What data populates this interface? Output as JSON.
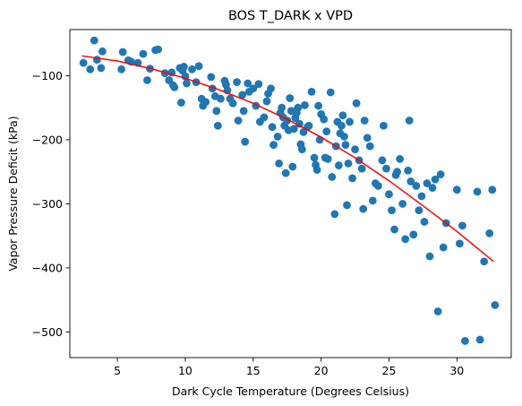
{
  "chart_data": {
    "type": "scatter",
    "title": "BOS T_DARK x VPD",
    "xlabel": "Dark Cycle Temperature (Degrees Celsius)",
    "ylabel": "Vapor Pressure Deficit (kPa)",
    "xlim": [
      1.5,
      34.0
    ],
    "ylim": [
      -540,
      -28
    ],
    "xticks": [
      5,
      10,
      15,
      20,
      25,
      30
    ],
    "yticks": [
      -100,
      -200,
      -300,
      -400,
      -500
    ],
    "grid": false,
    "colors": {
      "points": "#1f77b4",
      "fit": "#ff0000"
    },
    "series": [
      {
        "type": "scatter",
        "points": [
          [
            2.5,
            -80
          ],
          [
            3.0,
            -90
          ],
          [
            3.3,
            -45
          ],
          [
            3.5,
            -75
          ],
          [
            3.8,
            -88
          ],
          [
            3.9,
            -62
          ],
          [
            5.3,
            -90
          ],
          [
            5.4,
            -63
          ],
          [
            5.8,
            -76
          ],
          [
            6.0,
            -78
          ],
          [
            6.5,
            -80
          ],
          [
            6.9,
            -66
          ],
          [
            7.2,
            -107
          ],
          [
            7.4,
            -89
          ],
          [
            7.8,
            -60
          ],
          [
            8.0,
            -59
          ],
          [
            8.5,
            -96
          ],
          [
            8.8,
            -107
          ],
          [
            9.0,
            -95
          ],
          [
            9.1,
            -115
          ],
          [
            9.2,
            -118
          ],
          [
            9.6,
            -88
          ],
          [
            9.8,
            -92
          ],
          [
            9.9,
            -86
          ],
          [
            10.0,
            -101
          ],
          [
            10.1,
            -112
          ],
          [
            9.7,
            -142
          ],
          [
            10.5,
            -90
          ],
          [
            10.8,
            -110
          ],
          [
            11.0,
            -85
          ],
          [
            11.2,
            -136
          ],
          [
            11.3,
            -147
          ],
          [
            11.5,
            -141
          ],
          [
            11.9,
            -102
          ],
          [
            12.0,
            -120
          ],
          [
            12.2,
            -132
          ],
          [
            12.3,
            -155
          ],
          [
            12.4,
            -178
          ],
          [
            12.6,
            -136
          ],
          [
            12.9,
            -108
          ],
          [
            13.0,
            -114
          ],
          [
            13.1,
            -123
          ],
          [
            13.3,
            -136
          ],
          [
            13.5,
            -143
          ],
          [
            13.8,
            -110
          ],
          [
            13.9,
            -170
          ],
          [
            14.2,
            -130
          ],
          [
            14.3,
            -155
          ],
          [
            14.4,
            -203
          ],
          [
            14.6,
            -112
          ],
          [
            14.7,
            -125
          ],
          [
            15.0,
            -120
          ],
          [
            15.2,
            -147
          ],
          [
            15.4,
            -113
          ],
          [
            15.5,
            -172
          ],
          [
            15.8,
            -165
          ],
          [
            16.0,
            -140
          ],
          [
            16.1,
            -128
          ],
          [
            16.3,
            -120
          ],
          [
            16.4,
            -180
          ],
          [
            16.5,
            -208
          ],
          [
            16.8,
            -195
          ],
          [
            16.9,
            -237
          ],
          [
            17.0,
            -158
          ],
          [
            17.1,
            -150
          ],
          [
            17.2,
            -165
          ],
          [
            17.3,
            -178
          ],
          [
            17.4,
            -252
          ],
          [
            17.5,
            -170
          ],
          [
            17.6,
            -185
          ],
          [
            17.7,
            -135
          ],
          [
            17.8,
            -155
          ],
          [
            17.9,
            -242
          ],
          [
            18.0,
            -183
          ],
          [
            18.1,
            -166
          ],
          [
            18.2,
            -158
          ],
          [
            18.3,
            -150
          ],
          [
            18.4,
            -175
          ],
          [
            18.5,
            -207
          ],
          [
            18.6,
            -215
          ],
          [
            18.7,
            -188
          ],
          [
            18.8,
            -146
          ],
          [
            19.0,
            -180
          ],
          [
            19.1,
            -178
          ],
          [
            19.3,
            -125
          ],
          [
            19.5,
            -228
          ],
          [
            19.6,
            -239
          ],
          [
            19.7,
            -247
          ],
          [
            19.8,
            -147
          ],
          [
            19.9,
            -200
          ],
          [
            20.0,
            -160
          ],
          [
            20.2,
            -168
          ],
          [
            20.3,
            -228
          ],
          [
            20.4,
            -187
          ],
          [
            20.5,
            -230
          ],
          [
            20.7,
            -126
          ],
          [
            20.8,
            -258
          ],
          [
            21.0,
            -316
          ],
          [
            21.1,
            -210
          ],
          [
            21.2,
            -172
          ],
          [
            21.3,
            -240
          ],
          [
            21.4,
            -190
          ],
          [
            21.5,
            -178
          ],
          [
            21.6,
            -162
          ],
          [
            21.7,
            -195
          ],
          [
            21.8,
            -208
          ],
          [
            21.9,
            -302
          ],
          [
            22.0,
            -237
          ],
          [
            22.1,
            -172
          ],
          [
            22.3,
            -260
          ],
          [
            22.5,
            -215
          ],
          [
            22.6,
            -143
          ],
          [
            22.8,
            -232
          ],
          [
            23.0,
            -245
          ],
          [
            23.1,
            -308
          ],
          [
            23.2,
            -170
          ],
          [
            23.4,
            -197
          ],
          [
            23.6,
            -210
          ],
          [
            23.8,
            -295
          ],
          [
            24.0,
            -268
          ],
          [
            24.2,
            -272
          ],
          [
            24.5,
            -232
          ],
          [
            24.6,
            -178
          ],
          [
            24.8,
            -245
          ],
          [
            25.0,
            -285
          ],
          [
            25.2,
            -310
          ],
          [
            25.4,
            -340
          ],
          [
            25.5,
            -255
          ],
          [
            25.6,
            -250
          ],
          [
            25.8,
            -230
          ],
          [
            26.0,
            -300
          ],
          [
            26.2,
            -355
          ],
          [
            26.4,
            -248
          ],
          [
            26.5,
            -170
          ],
          [
            26.6,
            -265
          ],
          [
            26.8,
            -348
          ],
          [
            27.0,
            -272
          ],
          [
            27.2,
            -310
          ],
          [
            27.4,
            -288
          ],
          [
            27.6,
            -328
          ],
          [
            27.8,
            -268
          ],
          [
            28.0,
            -382
          ],
          [
            28.2,
            -275
          ],
          [
            28.4,
            -262
          ],
          [
            28.6,
            -468
          ],
          [
            28.8,
            -254
          ],
          [
            29.0,
            -368
          ],
          [
            29.2,
            -330
          ],
          [
            30.0,
            -278
          ],
          [
            30.2,
            -362
          ],
          [
            30.4,
            -334
          ],
          [
            30.6,
            -514
          ],
          [
            31.5,
            -281
          ],
          [
            31.7,
            -512
          ],
          [
            32.0,
            -390
          ],
          [
            32.4,
            -346
          ],
          [
            32.6,
            -278
          ],
          [
            32.8,
            -458
          ]
        ]
      },
      {
        "type": "line",
        "points": [
          [
            2.4,
            -69
          ],
          [
            5.0,
            -77
          ],
          [
            7.5,
            -89
          ],
          [
            10.0,
            -104
          ],
          [
            12.5,
            -122
          ],
          [
            15.0,
            -143
          ],
          [
            17.5,
            -168
          ],
          [
            20.0,
            -196
          ],
          [
            22.5,
            -228
          ],
          [
            25.0,
            -264
          ],
          [
            27.5,
            -303
          ],
          [
            30.0,
            -343
          ],
          [
            32.7,
            -390
          ]
        ]
      }
    ]
  }
}
